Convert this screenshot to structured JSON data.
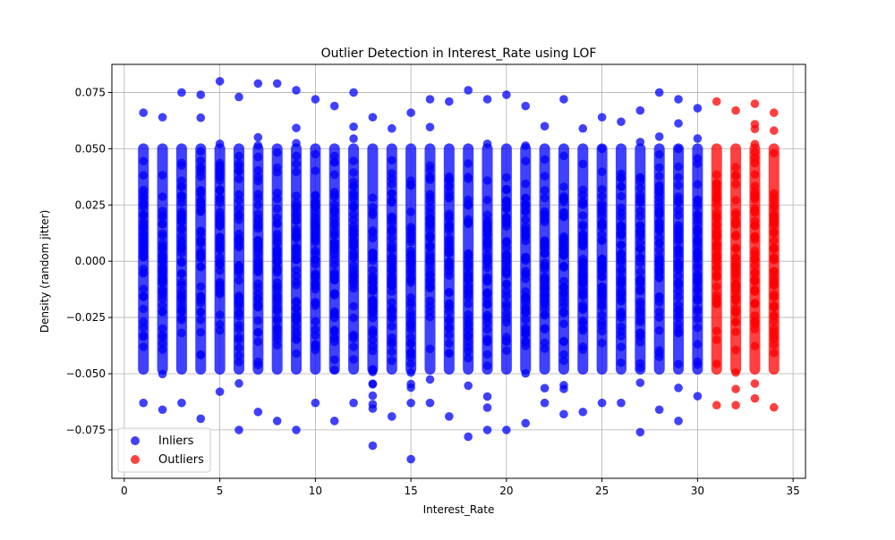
{
  "chart_data": {
    "type": "scatter",
    "title": "Outlier Detection in Interest_Rate using LOF",
    "xlabel": "Interest_Rate",
    "ylabel": "Density (random jitter)",
    "xlim": [
      -0.65,
      35.65
    ],
    "ylim": [
      -0.0965,
      0.0875
    ],
    "xticks": [
      0,
      5,
      10,
      15,
      20,
      25,
      30,
      35
    ],
    "yticks": [
      -0.075,
      -0.05,
      -0.025,
      0.0,
      0.025,
      0.05,
      0.075
    ],
    "ytick_labels": [
      "−0.075",
      "−0.050",
      "−0.025",
      "0.000",
      "0.025",
      "0.050",
      "0.075"
    ],
    "grid": true,
    "legend_position": "lower-left",
    "series": [
      {
        "name": "Inliers",
        "color": "#0000ff",
        "x_values": [
          1,
          2,
          3,
          4,
          5,
          6,
          7,
          8,
          9,
          10,
          11,
          12,
          13,
          14,
          15,
          16,
          17,
          18,
          19,
          20,
          21,
          22,
          23,
          24,
          25,
          26,
          27,
          28,
          29,
          30
        ],
        "y_range_per_x": [
          [
            -0.063,
            0.066
          ],
          [
            -0.066,
            0.064
          ],
          [
            -0.063,
            0.075
          ],
          [
            -0.07,
            0.074
          ],
          [
            -0.058,
            0.08
          ],
          [
            -0.075,
            0.073
          ],
          [
            -0.067,
            0.079
          ],
          [
            -0.071,
            0.079
          ],
          [
            -0.075,
            0.076
          ],
          [
            -0.063,
            0.072
          ],
          [
            -0.071,
            0.069
          ],
          [
            -0.063,
            0.075
          ],
          [
            -0.082,
            0.064
          ],
          [
            -0.069,
            0.059
          ],
          [
            -0.088,
            0.066
          ],
          [
            -0.063,
            0.072
          ],
          [
            -0.069,
            0.071
          ],
          [
            -0.078,
            0.076
          ],
          [
            -0.075,
            0.072
          ],
          [
            -0.075,
            0.074
          ],
          [
            -0.072,
            0.069
          ],
          [
            -0.063,
            0.06
          ],
          [
            -0.068,
            0.072
          ],
          [
            -0.067,
            0.059
          ],
          [
            -0.063,
            0.064
          ],
          [
            -0.063,
            0.062
          ],
          [
            -0.076,
            0.067
          ],
          [
            -0.066,
            0.075
          ],
          [
            -0.071,
            0.072
          ],
          [
            -0.06,
            0.068
          ]
        ]
      },
      {
        "name": "Outliers",
        "color": "#ff0000",
        "x_values": [
          31,
          32,
          33,
          34
        ],
        "y_range_per_x": [
          [
            -0.064,
            0.071
          ],
          [
            -0.064,
            0.067
          ],
          [
            -0.061,
            0.07
          ],
          [
            -0.065,
            0.066
          ]
        ]
      }
    ]
  }
}
